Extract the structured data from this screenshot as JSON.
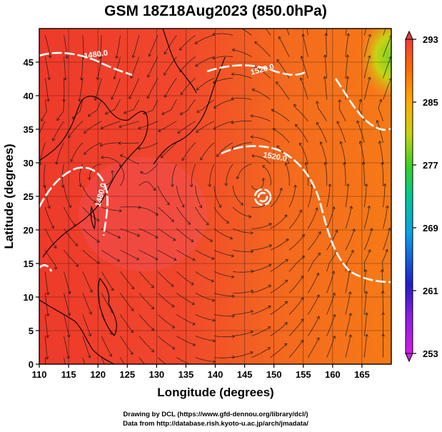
{
  "title": "GSM 18Z18Aug2023 (850.0hPa)",
  "x_axis": {
    "label": "Longitude (degrees)",
    "ticks": [
      "110",
      "115",
      "120",
      "125",
      "130",
      "135",
      "140",
      "145",
      "150",
      "155",
      "160",
      "165"
    ],
    "range": [
      110,
      170
    ]
  },
  "y_axis": {
    "label": "Latitude  (degrees)",
    "ticks": [
      "0",
      "5",
      "10",
      "15",
      "20",
      "25",
      "30",
      "35",
      "40",
      "45"
    ],
    "range": [
      0,
      50
    ]
  },
  "colorbar": {
    "ticks": [
      "253",
      "261",
      "269",
      "277",
      "285",
      "293"
    ],
    "range": [
      253,
      293
    ],
    "colors": [
      "#d21ee6",
      "#1e1ec8",
      "#0aa0e6",
      "#00c878",
      "#3cd21e",
      "#c8d214",
      "#ffaa00",
      "#ff6e00",
      "#f03c3c"
    ]
  },
  "contours": {
    "labels": [
      "1480.0",
      "1520.0",
      "1520.0",
      "1480.0"
    ],
    "color": "#ffffff"
  },
  "credits": {
    "line1": "Drawing by DCL (https://www.gfd-dennou.org/library/dcl/)",
    "line2": "Data from http://database.rish.kyoto-u.ac.jp/arch/jmadata/"
  }
}
